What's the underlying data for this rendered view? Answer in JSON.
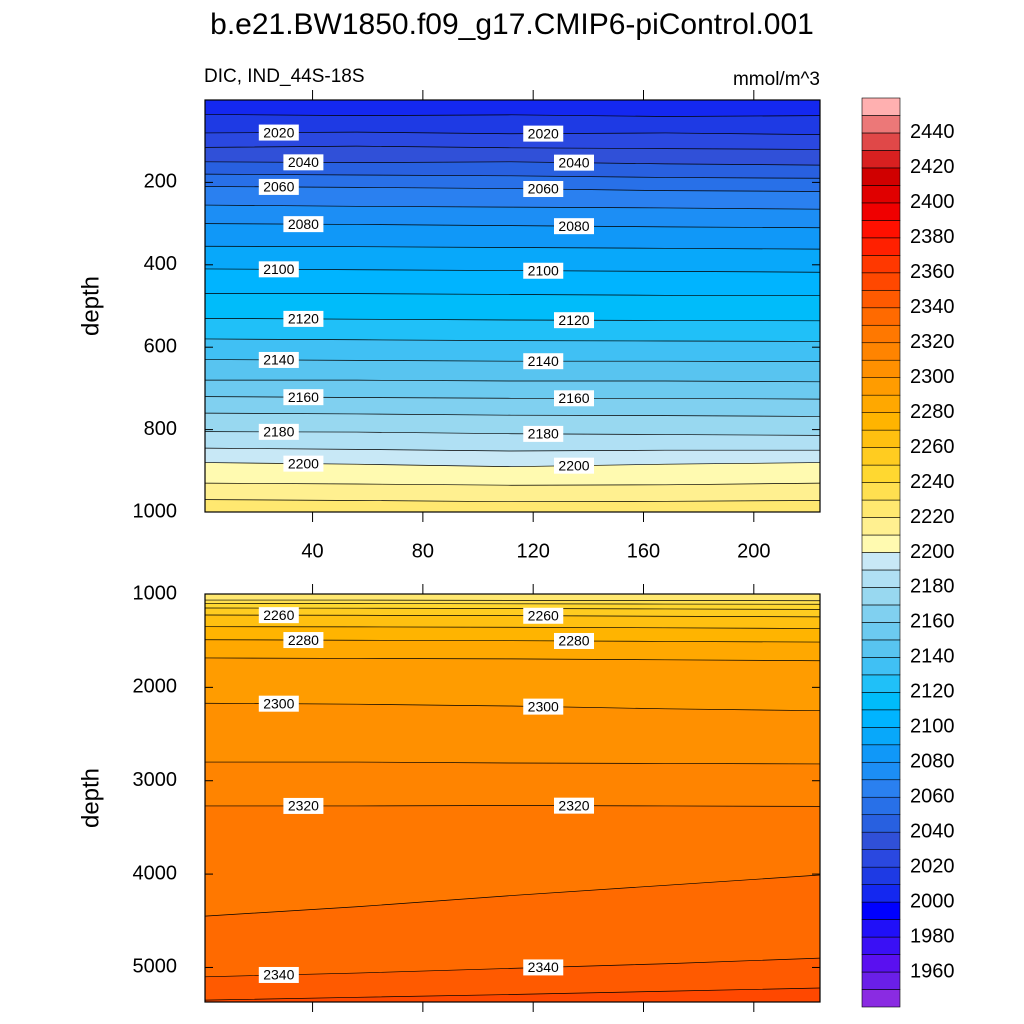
{
  "chart_data": {
    "type": "contour",
    "title": "b.e21.BW1850.f09_g17.CMIP6-piControl.001",
    "subtitle_left": "DIC, IND_44S-18S",
    "subtitle_right": "mmol/m^3",
    "x": [
      1,
      56,
      112,
      168,
      224
    ],
    "xlim": [
      1,
      224
    ],
    "xticks": [
      40,
      80,
      120,
      160,
      200
    ],
    "panels": [
      {
        "ylabel": "depth",
        "ylim": [
          0,
          1000
        ],
        "yticks": [
          200,
          400,
          600,
          800,
          1000
        ],
        "contours": [
          {
            "level": 2010,
            "depths": [
              35,
              38,
              36,
              40,
              38
            ]
          },
          {
            "level": 2020,
            "depths": [
              80,
              78,
              82,
              80,
              84
            ]
          },
          {
            "level": 2030,
            "depths": [
              115,
              112,
              116,
              118,
              120
            ]
          },
          {
            "level": 2040,
            "depths": [
              150,
              152,
              150,
              155,
              158
            ]
          },
          {
            "level": 2050,
            "depths": [
              180,
              182,
              184,
              188,
              190
            ]
          },
          {
            "level": 2060,
            "depths": [
              210,
              212,
              215,
              220,
              222
            ]
          },
          {
            "level": 2070,
            "depths": [
              255,
              258,
              260,
              262,
              265
            ]
          },
          {
            "level": 2080,
            "depths": [
              300,
              302,
              305,
              308,
              310
            ]
          },
          {
            "level": 2090,
            "depths": [
              355,
              356,
              358,
              360,
              362
            ]
          },
          {
            "level": 2100,
            "depths": [
              410,
              412,
              414,
              416,
              418
            ]
          },
          {
            "level": 2110,
            "depths": [
              470,
              470,
              472,
              474,
              475
            ]
          },
          {
            "level": 2120,
            "depths": [
              530,
              532,
              534,
              535,
              536
            ]
          },
          {
            "level": 2130,
            "depths": [
              580,
              582,
              584,
              585,
              586
            ]
          },
          {
            "level": 2140,
            "depths": [
              630,
              632,
              634,
              634,
              635
            ]
          },
          {
            "level": 2150,
            "depths": [
              680,
              680,
              682,
              682,
              684
            ]
          },
          {
            "level": 2160,
            "depths": [
              720,
              722,
              724,
              724,
              726
            ]
          },
          {
            "level": 2170,
            "depths": [
              760,
              762,
              765,
              766,
              768
            ]
          },
          {
            "level": 2180,
            "depths": [
              805,
              806,
              810,
              812,
              814
            ]
          },
          {
            "level": 2190,
            "depths": [
              845,
              848,
              852,
              850,
              850
            ]
          },
          {
            "level": 2200,
            "depths": [
              880,
              884,
              890,
              884,
              880
            ]
          },
          {
            "level": 2210,
            "depths": [
              930,
              932,
              935,
              934,
              930
            ]
          },
          {
            "level": 2220,
            "depths": [
              970,
              972,
              975,
              974,
              972
            ]
          }
        ]
      },
      {
        "ylabel": "depth",
        "ylim": [
          1000,
          5370
        ],
        "yticks": [
          1000,
          2000,
          3000,
          4000,
          5000
        ],
        "contours": [
          {
            "level": 2230,
            "depths": [
              1065,
              1065,
              1068,
              1070,
              1072
            ]
          },
          {
            "level": 2240,
            "depths": [
              1100,
              1102,
              1105,
              1108,
              1110
            ]
          },
          {
            "level": 2250,
            "depths": [
              1150,
              1152,
              1155,
              1160,
              1165
            ]
          },
          {
            "level": 2260,
            "depths": [
              1225,
              1228,
              1232,
              1238,
              1245
            ]
          },
          {
            "level": 2270,
            "depths": [
              1350,
              1352,
              1356,
              1362,
              1370
            ]
          },
          {
            "level": 2280,
            "depths": [
              1490,
              1495,
              1500,
              1508,
              1515
            ]
          },
          {
            "level": 2290,
            "depths": [
              1685,
              1690,
              1695,
              1705,
              1715
            ]
          },
          {
            "level": 2300,
            "depths": [
              2170,
              2180,
              2200,
              2230,
              2250
            ]
          },
          {
            "level": 2310,
            "depths": [
              2800,
              2800,
              2810,
              2815,
              2820
            ]
          },
          {
            "level": 2320,
            "depths": [
              3270,
              3270,
              3265,
              3270,
              3275
            ]
          },
          {
            "level": 2330,
            "depths": [
              4450,
              4350,
              4230,
              4120,
              4010
            ]
          },
          {
            "level": 2340,
            "depths": [
              5100,
              5060,
              5010,
              4960,
              4900
            ]
          },
          {
            "level": 2350,
            "depths": [
              5350,
              5320,
              5290,
              5255,
              5220
            ]
          }
        ]
      }
    ],
    "colorbar": {
      "levels": [
        1940,
        1950,
        1960,
        1970,
        1980,
        1990,
        2000,
        2010,
        2020,
        2030,
        2040,
        2050,
        2060,
        2070,
        2080,
        2090,
        2100,
        2110,
        2120,
        2130,
        2140,
        2150,
        2160,
        2170,
        2180,
        2190,
        2200,
        2210,
        2220,
        2230,
        2240,
        2250,
        2260,
        2270,
        2280,
        2290,
        2300,
        2310,
        2320,
        2330,
        2340,
        2350,
        2360,
        2370,
        2380,
        2390,
        2400,
        2410,
        2420,
        2430,
        2440,
        2450,
        2460
      ],
      "colors": [
        "#8a2be2",
        "#6a1fe8",
        "#5a10f0",
        "#3a10f5",
        "#2010f8",
        "#0000ff",
        "#1428f0",
        "#1e3ae4",
        "#2a48e0",
        "#3050d8",
        "#2860e0",
        "#2870e8",
        "#2a80f0",
        "#1c8ef5",
        "#1098f8",
        "#08a8fa",
        "#00b4ff",
        "#00bcfa",
        "#20c0f8",
        "#40c0f4",
        "#58c4f0",
        "#6ccaf0",
        "#80d0f0",
        "#98d8f0",
        "#b0e0f4",
        "#c8e8f6",
        "#fffab0",
        "#fff090",
        "#ffe870",
        "#ffe050",
        "#ffd830",
        "#ffcc20",
        "#ffc010",
        "#ffb400",
        "#ffa800",
        "#ff9c00",
        "#ff9000",
        "#ff8400",
        "#ff7800",
        "#ff6a00",
        "#ff5a00",
        "#ff4800",
        "#ff3800",
        "#ff2000",
        "#ff1000",
        "#f00000",
        "#e00000",
        "#d00000",
        "#d82020",
        "#e04848",
        "#ec7878",
        "#ffb0b0"
      ],
      "ticks": [
        1960,
        1980,
        2000,
        2020,
        2040,
        2060,
        2080,
        2100,
        2120,
        2140,
        2160,
        2180,
        2200,
        2220,
        2240,
        2260,
        2280,
        2300,
        2320,
        2340,
        2360,
        2380,
        2400,
        2420,
        2440
      ]
    }
  }
}
